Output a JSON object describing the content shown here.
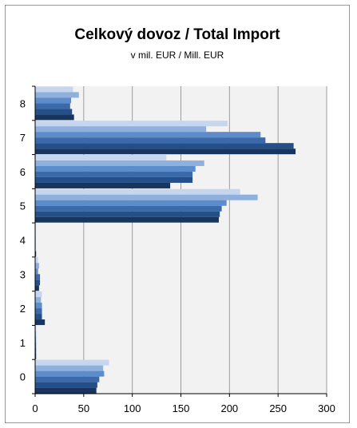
{
  "chart_data": {
    "type": "bar",
    "orientation": "horizontal",
    "title": "Celkový dovoz / Total Import",
    "subtitle": "v mil. EUR / Mill. EUR",
    "xlabel": "",
    "ylabel": "",
    "categories": [
      "0",
      "1",
      "2",
      "3",
      "4",
      "5",
      "6",
      "7",
      "8"
    ],
    "xlim": [
      0,
      300
    ],
    "xticks": [
      0,
      50,
      100,
      150,
      200,
      250,
      300
    ],
    "grid": true,
    "legend": "none",
    "series_colors": [
      "#c6d6ee",
      "#8fb0dc",
      "#5c8ccb",
      "#3a6aaa",
      "#244f88",
      "#17355f"
    ],
    "series": [
      {
        "values": [
          76,
          1,
          7,
          3,
          0.5,
          211,
          135,
          198,
          39
        ]
      },
      {
        "values": [
          70,
          1,
          6,
          4,
          0.5,
          229,
          174,
          176,
          45
        ]
      },
      {
        "values": [
          71,
          1,
          7,
          3,
          0.5,
          197,
          165,
          232,
          37
        ]
      },
      {
        "values": [
          66,
          1,
          7,
          5,
          0.5,
          192,
          162,
          237,
          36
        ]
      },
      {
        "values": [
          64,
          1,
          7,
          5,
          0.5,
          190,
          162,
          266,
          38
        ]
      },
      {
        "values": [
          63,
          1,
          10,
          4,
          1,
          189,
          139,
          268,
          40
        ]
      }
    ]
  }
}
